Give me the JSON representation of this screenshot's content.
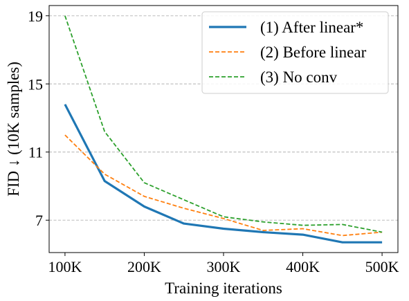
{
  "chart_data": {
    "type": "line",
    "xlabel": "Training iterations",
    "ylabel": "FID ↓ (10K samples)",
    "x": [
      100000,
      150000,
      200000,
      250000,
      300000,
      350000,
      400000,
      450000,
      500000
    ],
    "xticks": [
      100000,
      200000,
      300000,
      400000,
      500000
    ],
    "xtick_labels": [
      "100K",
      "200K",
      "300K",
      "400K",
      "500K"
    ],
    "yticks": [
      7,
      11,
      15,
      19
    ],
    "ytick_labels": [
      "7",
      "11",
      "15",
      "19"
    ],
    "xlim": [
      80000,
      520000
    ],
    "ylim": [
      5.1,
      19.6
    ],
    "grid": "horizontal dashed",
    "legend_position": "top-right",
    "series": [
      {
        "name": "(1) After linear*",
        "values": [
          13.8,
          9.3,
          7.8,
          6.8,
          6.5,
          6.3,
          6.15,
          5.7,
          5.7
        ],
        "color": "#1f77b4",
        "style": "solid"
      },
      {
        "name": "(2) Before linear",
        "values": [
          12.0,
          9.7,
          8.4,
          7.7,
          7.1,
          6.4,
          6.5,
          6.1,
          6.3
        ],
        "color": "#ff7f0e",
        "style": "dashed"
      },
      {
        "name": "(3) No conv",
        "values": [
          19.0,
          12.2,
          9.2,
          8.2,
          7.2,
          6.9,
          6.7,
          6.75,
          6.3
        ],
        "color": "#2ca02c",
        "style": "dashed"
      }
    ]
  }
}
